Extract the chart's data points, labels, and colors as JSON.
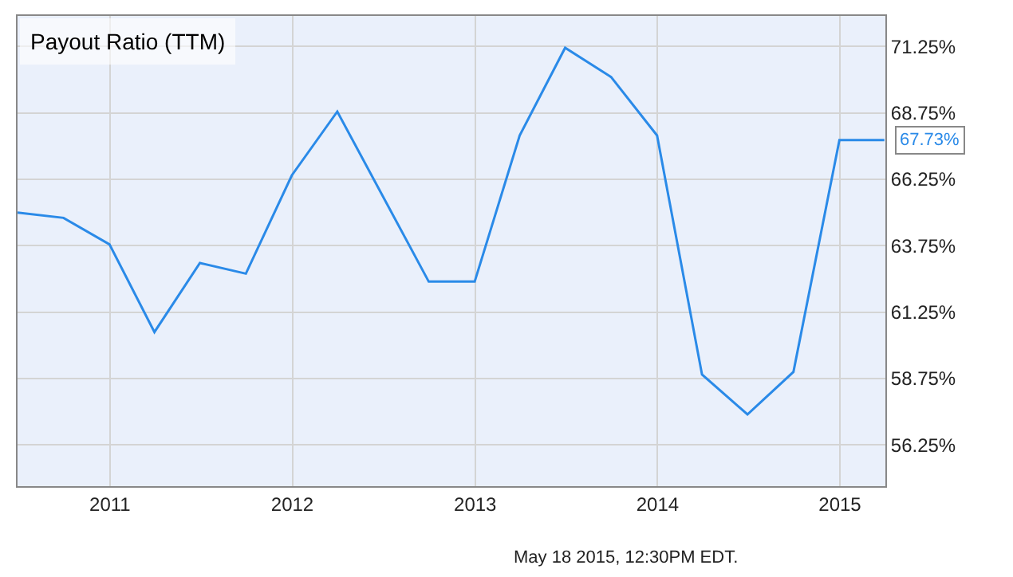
{
  "chart_data": {
    "type": "line",
    "title": "Payout Ratio (TTM)",
    "x": [
      "2010-06-30",
      "2010-09-30",
      "2010-12-31",
      "2011-03-31",
      "2011-06-30",
      "2011-09-30",
      "2011-12-31",
      "2012-03-31",
      "2012-09-30",
      "2012-12-31",
      "2013-03-31",
      "2013-06-30",
      "2013-09-30",
      "2013-12-31",
      "2014-03-31",
      "2014-06-30",
      "2014-09-30",
      "2014-12-31",
      "2015-03-31"
    ],
    "series": [
      {
        "color": "#2a8ae8",
        "values": [
          65.0,
          64.8,
          63.8,
          60.5,
          63.1,
          62.7,
          66.4,
          68.8,
          62.4,
          62.4,
          67.9,
          71.2,
          70.1,
          67.9,
          58.9,
          57.4,
          59.0,
          67.73,
          67.73
        ]
      }
    ],
    "xlim": [
      "2010-06-30",
      "2015-04-02"
    ],
    "xticks": [
      {
        "value": "2011-01-01",
        "label": "2011"
      },
      {
        "value": "2012-01-01",
        "label": "2012"
      },
      {
        "value": "2013-01-01",
        "label": "2013"
      },
      {
        "value": "2014-01-01",
        "label": "2014"
      },
      {
        "value": "2015-01-01",
        "label": "2015"
      }
    ],
    "ylim": [
      54.7,
      72.4
    ],
    "yticks": [
      {
        "value": 56.25,
        "label": "56.25%"
      },
      {
        "value": 58.75,
        "label": "58.75%"
      },
      {
        "value": 61.25,
        "label": "61.25%"
      },
      {
        "value": 63.75,
        "label": "63.75%"
      },
      {
        "value": 66.25,
        "label": "66.25%"
      },
      {
        "value": 68.75,
        "label": "68.75%"
      },
      {
        "value": 71.25,
        "label": "71.25%"
      }
    ],
    "grid": true,
    "marker": "none",
    "line_style": "solid",
    "legend": false,
    "annotations": [
      {
        "text": "67.73%",
        "x": "2015-03-31",
        "y": 67.73
      },
      "May 18 2015, 12:30PM EDT."
    ]
  }
}
